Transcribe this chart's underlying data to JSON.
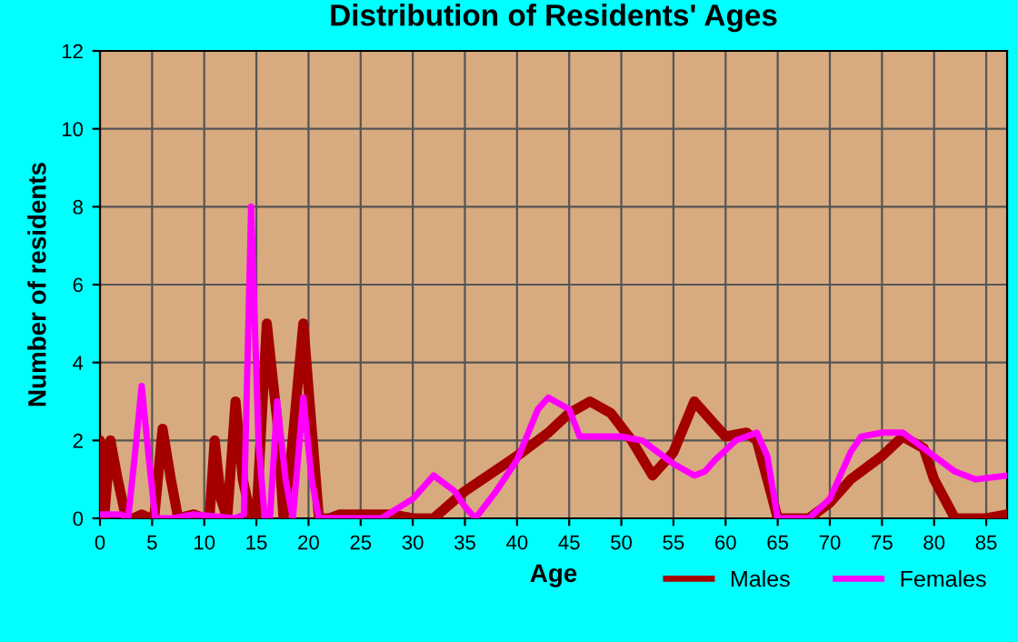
{
  "chart_data": {
    "type": "line",
    "title": "Distribution of Residents' Ages",
    "xlabel": "Age",
    "ylabel": "Number of residents",
    "xlim": [
      0,
      87
    ],
    "ylim": [
      0,
      12
    ],
    "xticks": [
      0,
      5,
      10,
      15,
      20,
      25,
      30,
      35,
      40,
      45,
      50,
      55,
      60,
      65,
      70,
      75,
      80,
      85
    ],
    "yticks": [
      0,
      2,
      4,
      6,
      8,
      10,
      12
    ],
    "grid": true,
    "legend": "bottom",
    "marker": "none",
    "line_style": "solid",
    "series": [
      {
        "name": "Males",
        "color": "#a50000",
        "x": [
          0,
          0.4,
          1,
          1.7,
          2.5,
          3.2,
          4,
          4.8,
          5.2,
          6,
          6.8,
          7.5,
          9,
          10,
          10.5,
          11,
          11.6,
          12.2,
          13,
          13.7,
          14.5,
          15,
          16,
          17,
          17.6,
          18.3,
          19.5,
          20.4,
          21,
          22,
          23,
          25,
          28,
          30,
          32,
          35,
          40,
          43,
          45,
          47,
          49,
          51,
          53,
          55,
          57,
          59,
          60,
          62,
          63,
          64,
          65,
          68,
          70,
          72,
          75,
          77,
          79,
          80,
          82,
          85,
          87
        ],
        "values": [
          2,
          0,
          2,
          1,
          0,
          0,
          0.1,
          0,
          0,
          2.3,
          1,
          0,
          0.1,
          0,
          0,
          2,
          0.5,
          0,
          3,
          1,
          0,
          0,
          5,
          2.5,
          0,
          1.5,
          5,
          2,
          0,
          0,
          0.1,
          0.1,
          0.1,
          0,
          0,
          0.7,
          1.6,
          2.2,
          2.7,
          3,
          2.7,
          2,
          1.1,
          1.7,
          3,
          2.4,
          2.1,
          2.2,
          2,
          1,
          0,
          0,
          0.4,
          1,
          1.6,
          2.1,
          1.8,
          1,
          0,
          0,
          0.1
        ]
      },
      {
        "name": "Females",
        "color": "#ff00ff",
        "x": [
          0,
          2,
          2.7,
          3.3,
          4,
          4.7,
          5.3,
          7,
          9,
          13,
          13.8,
          14.5,
          15.2,
          15.8,
          16.3,
          17,
          17.8,
          18.5,
          19.5,
          20.3,
          21,
          27,
          30,
          32,
          34,
          35,
          36,
          38,
          40,
          42,
          43,
          45,
          46,
          48,
          50,
          52,
          53,
          55,
          57,
          58,
          59,
          61,
          63,
          64,
          65,
          68,
          70,
          72,
          73,
          75,
          77,
          78,
          80,
          82,
          84,
          87
        ],
        "values": [
          0.1,
          0.1,
          0,
          1.5,
          3.4,
          1.5,
          0,
          0,
          0.1,
          0,
          0.1,
          8,
          2,
          0,
          0,
          3,
          1,
          0,
          3.1,
          1,
          0,
          0,
          0.5,
          1.1,
          0.7,
          0.3,
          0,
          0.7,
          1.5,
          2.8,
          3.1,
          2.8,
          2.1,
          2.1,
          2.1,
          2,
          1.8,
          1.4,
          1.1,
          1.2,
          1.5,
          2,
          2.2,
          1.6,
          0,
          0,
          0.5,
          1.7,
          2.1,
          2.2,
          2.2,
          2,
          1.6,
          1.2,
          1,
          1.1
        ]
      }
    ]
  }
}
